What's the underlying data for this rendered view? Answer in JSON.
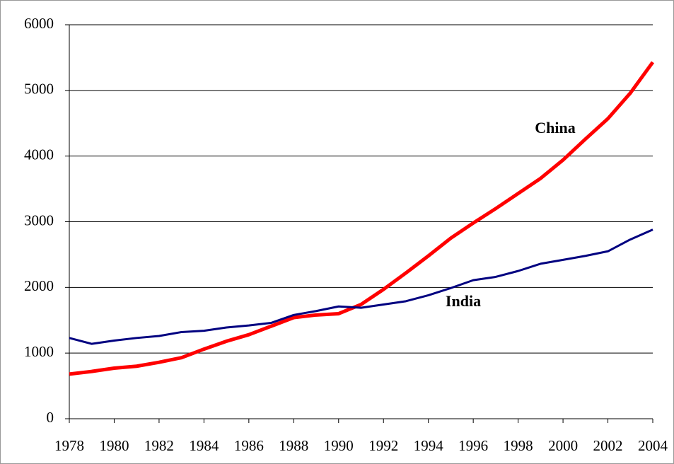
{
  "chart_data": {
    "type": "line",
    "x": [
      1978,
      1979,
      1980,
      1981,
      1982,
      1983,
      1984,
      1985,
      1986,
      1987,
      1988,
      1989,
      1990,
      1991,
      1992,
      1993,
      1994,
      1995,
      1996,
      1997,
      1998,
      1999,
      2000,
      2001,
      2002,
      2003,
      2004
    ],
    "series": [
      {
        "name": "China",
        "color": "#ff0000",
        "values": [
          680,
          720,
          770,
          800,
          860,
          930,
          1060,
          1180,
          1280,
          1410,
          1540,
          1580,
          1600,
          1740,
          1970,
          2220,
          2480,
          2750,
          2980,
          3200,
          3430,
          3660,
          3940,
          4260,
          4570,
          4960,
          5430
        ]
      },
      {
        "name": "India",
        "color": "#000080",
        "values": [
          1230,
          1140,
          1190,
          1230,
          1260,
          1320,
          1340,
          1390,
          1420,
          1460,
          1580,
          1640,
          1710,
          1690,
          1740,
          1790,
          1880,
          1990,
          2110,
          2160,
          2250,
          2360,
          2420,
          2480,
          2550,
          2730,
          2880
        ]
      }
    ],
    "xlim": [
      1978,
      2004
    ],
    "xticks": [
      1978,
      1980,
      1982,
      1984,
      1986,
      1988,
      1990,
      1992,
      1994,
      1996,
      1998,
      2000,
      2002,
      2004
    ],
    "ylim": [
      0,
      6000
    ],
    "yticks": [
      0,
      1000,
      2000,
      3000,
      4000,
      5000,
      6000
    ],
    "grid": true
  }
}
